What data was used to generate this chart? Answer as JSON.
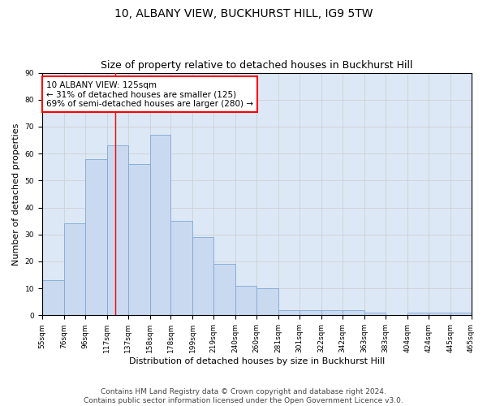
{
  "title": "10, ALBANY VIEW, BUCKHURST HILL, IG9 5TW",
  "subtitle": "Size of property relative to detached houses in Buckhurst Hill",
  "xlabel": "Distribution of detached houses by size in Buckhurst Hill",
  "ylabel": "Number of detached properties",
  "bins": [
    55,
    76,
    96,
    117,
    137,
    158,
    178,
    199,
    219,
    240,
    260,
    281,
    301,
    322,
    342,
    363,
    383,
    404,
    424,
    445,
    465
  ],
  "counts": [
    13,
    34,
    58,
    63,
    56,
    67,
    35,
    29,
    19,
    11,
    10,
    2,
    2,
    2,
    2,
    1,
    0,
    1,
    1,
    1
  ],
  "bar_facecolor": "#c9d9f0",
  "bar_edgecolor": "#7fa8d4",
  "grid_color": "#cccccc",
  "bg_color": "#dce8f5",
  "red_line_x": 125,
  "annotation_text": "10 ALBANY VIEW: 125sqm\n← 31% of detached houses are smaller (125)\n69% of semi-detached houses are larger (280) →",
  "annotation_box_color": "white",
  "annotation_box_edgecolor": "red",
  "ylim": [
    0,
    90
  ],
  "yticks": [
    0,
    10,
    20,
    30,
    40,
    50,
    60,
    70,
    80,
    90
  ],
  "footer1": "Contains HM Land Registry data © Crown copyright and database right 2024.",
  "footer2": "Contains public sector information licensed under the Open Government Licence v3.0.",
  "title_fontsize": 10,
  "subtitle_fontsize": 9,
  "axis_label_fontsize": 8,
  "tick_fontsize": 6.5,
  "annotation_fontsize": 7.5,
  "footer_fontsize": 6.5
}
